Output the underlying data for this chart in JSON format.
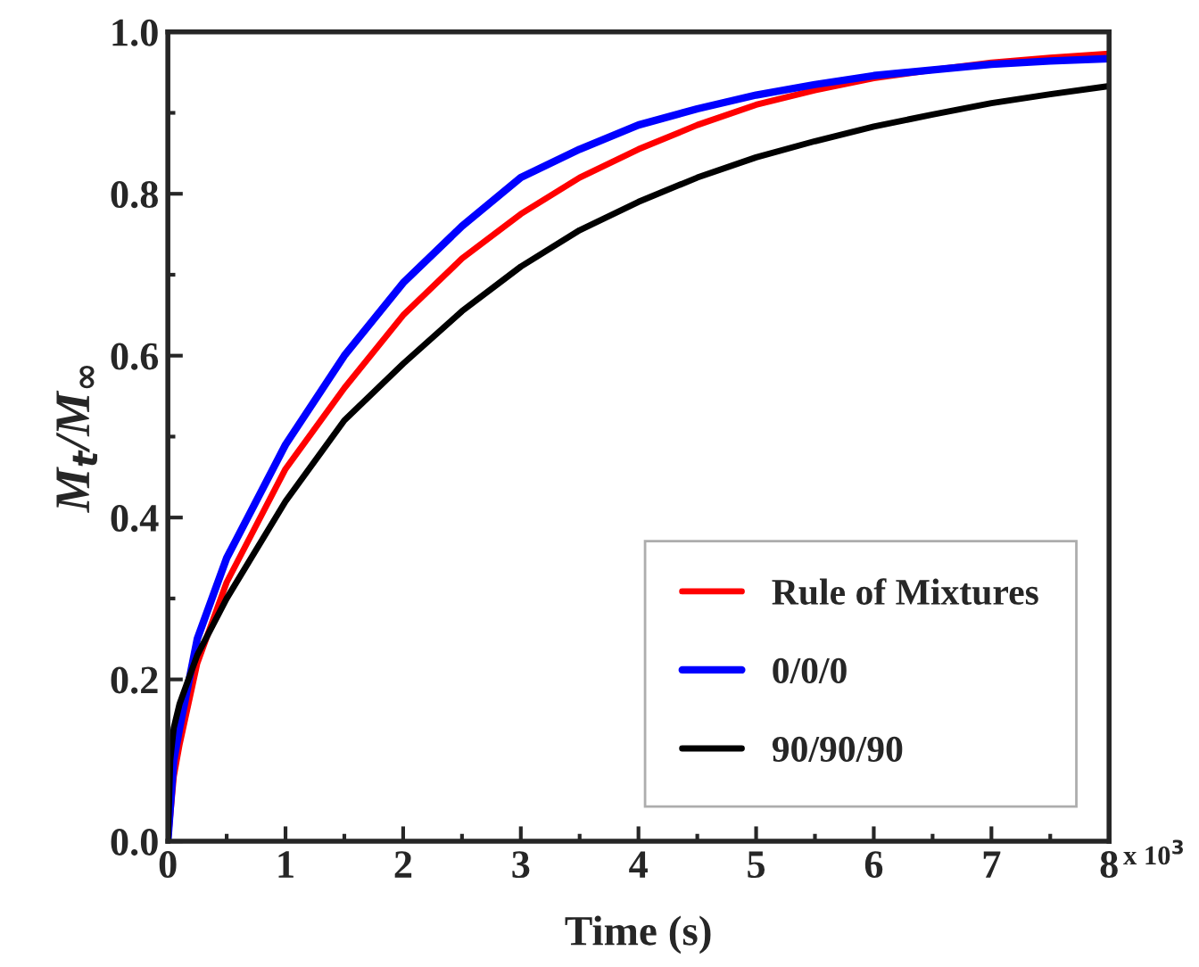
{
  "chart_data": {
    "type": "line",
    "xlabel": "Time (s)",
    "ylabel": "M$_{t}$/M$_{∞}$",
    "annotations": [
      "x 10$^{3}$"
    ],
    "xlim": [
      0,
      8
    ],
    "xticks": [
      0,
      1,
      2,
      3,
      4,
      5,
      6,
      7,
      8
    ],
    "ylim": [
      0,
      1.0
    ],
    "yticks": [
      {
        "value": 0,
        "label": "0.0"
      },
      0.2,
      0.4,
      0.6,
      0.8,
      {
        "value": 1.0,
        "label": "1.0"
      }
    ],
    "grid": false,
    "legend": "bottom right",
    "marker": "none",
    "line_style": "solid",
    "series": [
      {
        "name": "Rule of Mixtures",
        "color": "#ff0000",
        "x": [
          0,
          0.05,
          0.1,
          0.25,
          0.5,
          1,
          1.5,
          2,
          2.5,
          3,
          3.5,
          4,
          4.5,
          5,
          5.5,
          6,
          6.5,
          7,
          7.5,
          8
        ],
        "values": [
          0,
          0.08,
          0.12,
          0.22,
          0.32,
          0.46,
          0.56,
          0.65,
          0.72,
          0.775,
          0.82,
          0.855,
          0.885,
          0.91,
          0.928,
          0.943,
          0.953,
          0.962,
          0.968,
          0.973
        ]
      },
      {
        "name": "0/0/0",
        "color": "#0000ff",
        "x": [
          0,
          0.05,
          0.1,
          0.25,
          0.5,
          1,
          1.5,
          2,
          2.5,
          3,
          3.5,
          4,
          4.5,
          5,
          5.5,
          6,
          6.5,
          7,
          7.5,
          8
        ],
        "values": [
          0,
          0.1,
          0.14,
          0.25,
          0.35,
          0.49,
          0.6,
          0.69,
          0.76,
          0.82,
          0.855,
          0.885,
          0.905,
          0.922,
          0.935,
          0.946,
          0.953,
          0.96,
          0.964,
          0.967
        ]
      },
      {
        "name": "90/90/90",
        "color": "#000000",
        "x": [
          0,
          0.02,
          0.05,
          0.1,
          0.25,
          0.5,
          1,
          1.5,
          2,
          2.5,
          3,
          3.5,
          4,
          4.5,
          5,
          5.5,
          6,
          6.5,
          7,
          7.5,
          8
        ],
        "values": [
          0,
          0.1,
          0.14,
          0.17,
          0.23,
          0.3,
          0.42,
          0.52,
          0.59,
          0.655,
          0.71,
          0.755,
          0.79,
          0.82,
          0.845,
          0.865,
          0.883,
          0.898,
          0.912,
          0.923,
          0.933
        ]
      }
    ]
  }
}
